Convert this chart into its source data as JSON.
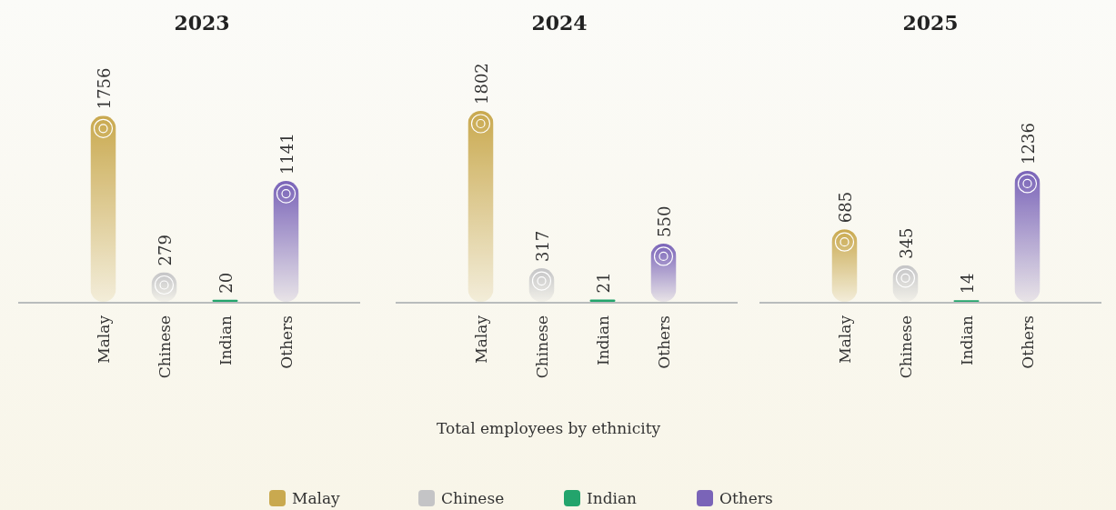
{
  "chart_data": [
    {
      "type": "bar",
      "title": "2023",
      "categories": [
        "Malay",
        "Chinese",
        "Indian",
        "Others"
      ],
      "stacked": true,
      "data_labels": true,
      "series": [
        {
          "color": "#c9a94f",
          "values": [
            1756,
            null,
            null,
            null
          ]
        },
        {
          "color": "#c4c4c6",
          "values": [
            null,
            279,
            null,
            null
          ]
        },
        {
          "color": "#23a46c",
          "values": [
            null,
            null,
            20,
            null
          ]
        },
        {
          "color": "#7a64b8",
          "values": [
            null,
            null,
            null,
            1141
          ]
        }
      ]
    },
    {
      "type": "bar",
      "title": "2024",
      "categories": [
        "Malay",
        "Chinese",
        "Indian",
        "Others"
      ],
      "stacked": true,
      "data_labels": true,
      "xlabel": "Total employees by ethnicity",
      "legend": "bottom",
      "series": [
        {
          "name": "Malay",
          "color": "#c9a94f",
          "values": [
            1802,
            null,
            null,
            null
          ]
        },
        {
          "name": "Chinese",
          "color": "#c4c4c6",
          "values": [
            null,
            317,
            null,
            null
          ]
        },
        {
          "name": "Indian",
          "color": "#23a46c",
          "values": [
            null,
            null,
            21,
            null
          ]
        },
        {
          "name": "Others",
          "color": "#7a64b8",
          "values": [
            null,
            null,
            null,
            550
          ]
        }
      ]
    },
    {
      "type": "bar",
      "title": "2025",
      "categories": [
        "Malay",
        "Chinese",
        "Indian",
        "Others"
      ],
      "stacked": true,
      "data_labels": true,
      "series": [
        {
          "color": "#c9a94f",
          "values": [
            685,
            null,
            null,
            null
          ]
        },
        {
          "color": "#c4c4c6",
          "values": [
            null,
            345,
            null,
            null
          ]
        },
        {
          "color": "#23a46c",
          "values": [
            null,
            null,
            14,
            null
          ]
        },
        {
          "color": "#7a64b8",
          "values": [
            null,
            null,
            null,
            1236
          ]
        }
      ]
    }
  ]
}
